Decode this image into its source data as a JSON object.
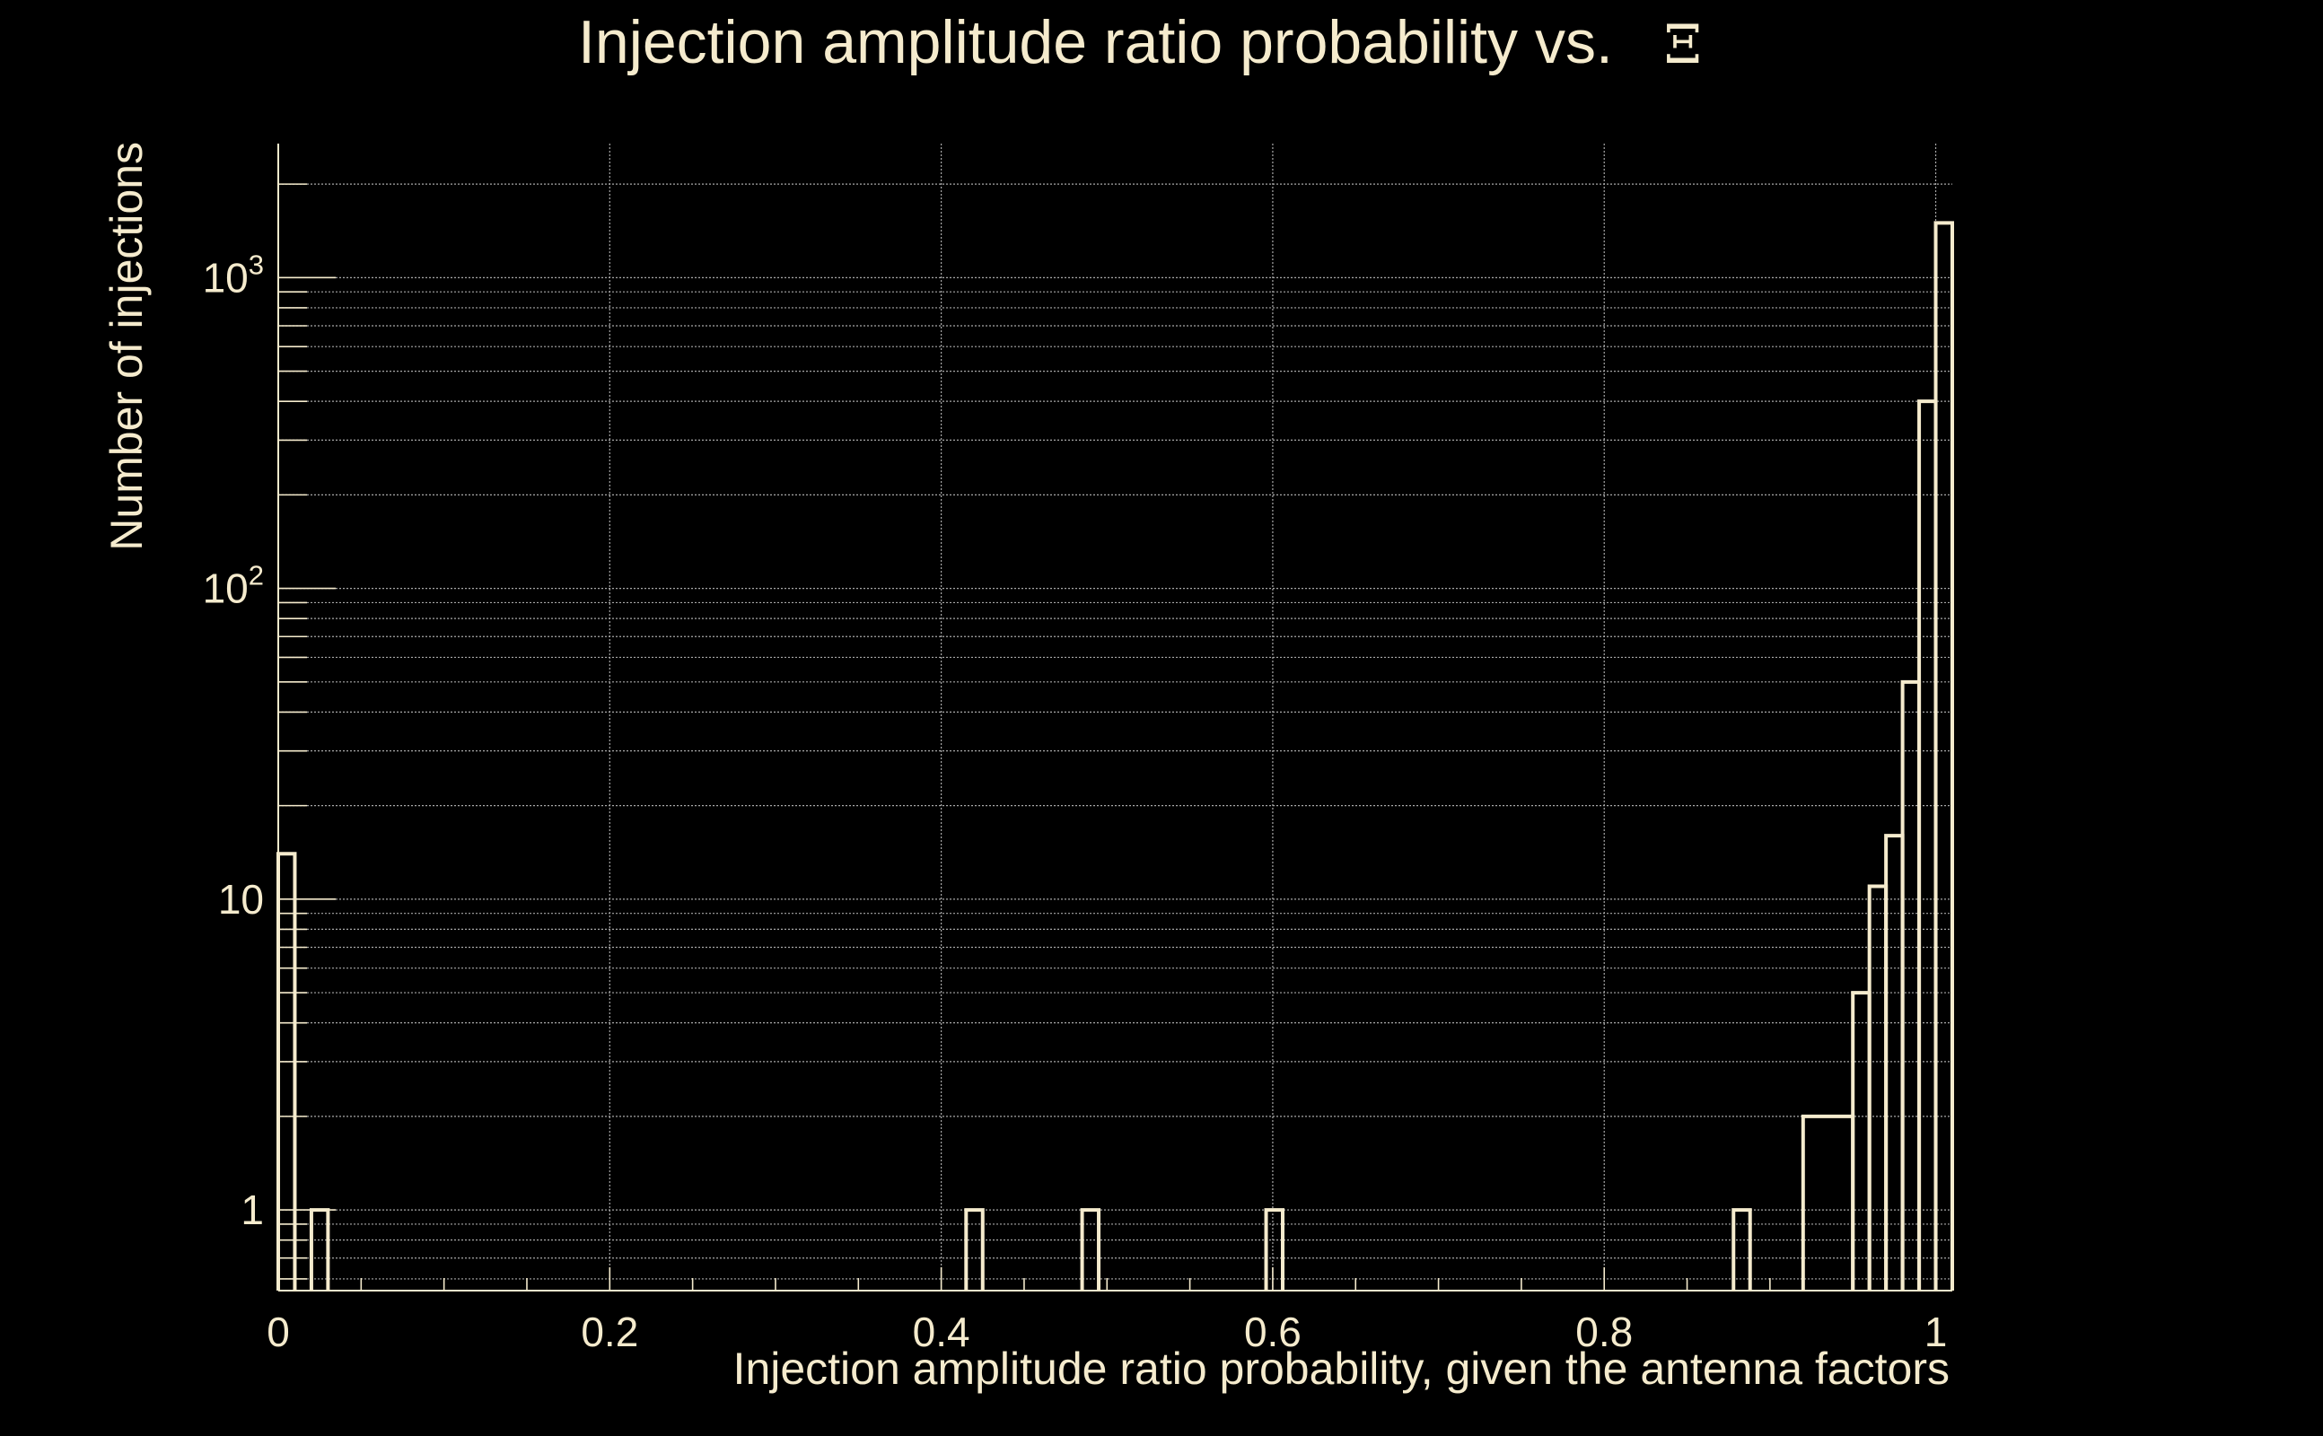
{
  "colors": {
    "background": "#000000",
    "foreground": "#f5ebcd",
    "grid": "#a8a8a8"
  },
  "chart_data": {
    "type": "bar",
    "style": "step-histogram",
    "title": "Injection amplitude ratio probability vs.",
    "title_symbol": "Ξ",
    "xlabel": "Injection amplitude ratio probability, given the antenna factors",
    "ylabel": "Number of injections",
    "xlim": [
      0,
      1.01
    ],
    "ylim": [
      0.55,
      2700
    ],
    "yscale": "log",
    "grid": true,
    "legend": "none",
    "x_ticks": [
      {
        "value": 0,
        "label": "0"
      },
      {
        "value": 0.2,
        "label": "0.2"
      },
      {
        "value": 0.4,
        "label": "0.4"
      },
      {
        "value": 0.6,
        "label": "0.6"
      },
      {
        "value": 0.8,
        "label": "0.8"
      },
      {
        "value": 1,
        "label": "1"
      }
    ],
    "y_ticks": [
      {
        "value": 1,
        "base": "1",
        "exp": ""
      },
      {
        "value": 10,
        "base": "10",
        "exp": ""
      },
      {
        "value": 100,
        "base": "10",
        "exp": "2"
      },
      {
        "value": 1000,
        "base": "10",
        "exp": "3"
      }
    ],
    "series": [
      {
        "name": "injections",
        "bins": [
          {
            "x0": 0.0,
            "x1": 0.01,
            "value": 14
          },
          {
            "x0": 0.02,
            "x1": 0.03,
            "value": 1
          },
          {
            "x0": 0.415,
            "x1": 0.425,
            "value": 1
          },
          {
            "x0": 0.485,
            "x1": 0.495,
            "value": 1
          },
          {
            "x0": 0.596,
            "x1": 0.606,
            "value": 1
          },
          {
            "x0": 0.878,
            "x1": 0.888,
            "value": 1
          },
          {
            "x0": 0.92,
            "x1": 0.95,
            "value": 2
          },
          {
            "x0": 0.95,
            "x1": 0.96,
            "value": 5
          },
          {
            "x0": 0.96,
            "x1": 0.97,
            "value": 11
          },
          {
            "x0": 0.97,
            "x1": 0.98,
            "value": 16
          },
          {
            "x0": 0.98,
            "x1": 0.99,
            "value": 50
          },
          {
            "x0": 0.99,
            "x1": 1.0,
            "value": 400
          },
          {
            "x0": 1.0,
            "x1": 1.01,
            "value": 1500
          }
        ]
      }
    ]
  }
}
